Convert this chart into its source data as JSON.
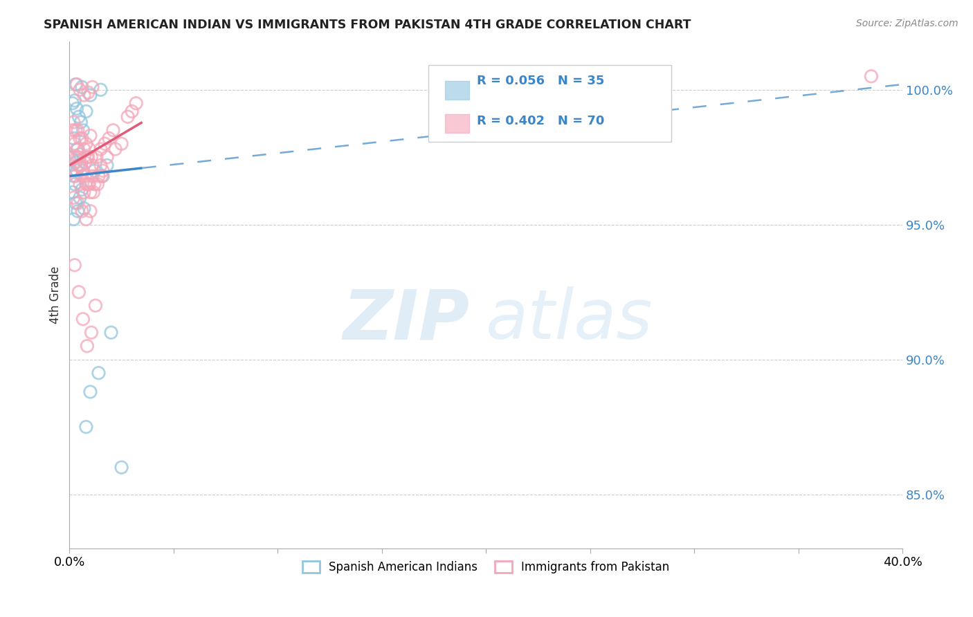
{
  "title": "SPANISH AMERICAN INDIAN VS IMMIGRANTS FROM PAKISTAN 4TH GRADE CORRELATION CHART",
  "source": "Source: ZipAtlas.com",
  "ylabel": "4th Grade",
  "ytick_values": [
    85.0,
    90.0,
    95.0,
    100.0
  ],
  "watermark_zip": "ZIP",
  "watermark_atlas": "atlas",
  "legend_r_blue": "R = 0.056",
  "legend_n_blue": "N = 35",
  "legend_r_pink": "R = 0.402",
  "legend_n_pink": "N = 70",
  "blue_color": "#92c5de",
  "pink_color": "#f4a6b8",
  "blue_line_color": "#3a86c8",
  "pink_line_color": "#e05a7a",
  "blue_scatter_x": [
    0.3,
    0.6,
    1.0,
    1.5,
    0.15,
    0.25,
    0.35,
    0.45,
    0.55,
    0.65,
    0.8,
    0.2,
    0.4,
    0.1,
    0.3,
    0.5,
    0.2,
    0.35,
    0.25,
    0.15,
    0.45,
    0.3,
    0.2,
    0.4,
    0.5,
    0.6,
    0.7,
    1.2,
    1.6,
    1.8,
    2.0,
    1.4,
    1.0,
    0.8,
    2.5
  ],
  "blue_scatter_y": [
    100.2,
    100.1,
    99.8,
    100.0,
    99.5,
    99.6,
    99.3,
    99.0,
    98.8,
    98.5,
    99.2,
    98.2,
    97.8,
    97.5,
    97.3,
    97.6,
    96.8,
    97.0,
    96.5,
    96.2,
    97.2,
    95.8,
    95.2,
    95.5,
    96.0,
    96.3,
    95.6,
    97.0,
    96.8,
    97.2,
    91.0,
    89.5,
    88.8,
    87.5,
    86.0
  ],
  "pink_scatter_x": [
    0.35,
    0.5,
    0.7,
    0.9,
    1.1,
    0.2,
    0.4,
    0.6,
    0.8,
    1.0,
    0.15,
    0.25,
    0.35,
    0.45,
    0.55,
    0.65,
    0.75,
    0.85,
    0.95,
    1.05,
    0.1,
    0.3,
    0.5,
    0.7,
    0.9,
    1.1,
    0.2,
    0.4,
    0.6,
    0.8,
    1.0,
    1.5,
    1.8,
    2.2,
    2.5,
    0.3,
    0.5,
    0.7,
    0.9,
    1.1,
    1.3,
    1.5,
    1.7,
    1.9,
    2.1,
    0.2,
    0.4,
    0.6,
    0.8,
    1.0,
    1.2,
    1.4,
    1.6,
    0.35,
    0.55,
    0.75,
    0.95,
    1.15,
    1.35,
    1.55,
    0.25,
    0.45,
    0.65,
    0.85,
    1.05,
    1.25,
    2.8,
    3.0,
    3.2,
    38.5
  ],
  "pink_scatter_y": [
    100.2,
    100.0,
    99.8,
    99.9,
    100.1,
    98.8,
    98.5,
    98.2,
    98.0,
    98.3,
    98.5,
    98.0,
    97.8,
    97.5,
    97.2,
    97.0,
    97.3,
    97.5,
    97.8,
    97.5,
    97.0,
    96.8,
    96.5,
    96.2,
    96.5,
    96.8,
    96.0,
    95.8,
    95.5,
    95.2,
    95.5,
    97.2,
    97.5,
    97.8,
    98.0,
    98.5,
    98.2,
    97.8,
    97.5,
    97.2,
    97.5,
    97.8,
    98.0,
    98.2,
    98.5,
    97.5,
    97.2,
    96.8,
    96.5,
    96.2,
    96.5,
    96.8,
    97.0,
    97.5,
    97.2,
    96.8,
    96.5,
    96.2,
    96.5,
    96.8,
    93.5,
    92.5,
    91.5,
    90.5,
    91.0,
    92.0,
    99.0,
    99.2,
    99.5,
    100.5
  ],
  "xlim": [
    0.0,
    40.0
  ],
  "ylim": [
    83.0,
    101.8
  ],
  "blue_solid_x0": 0.0,
  "blue_solid_y0": 96.8,
  "blue_solid_x1": 3.5,
  "blue_solid_y1": 97.1,
  "blue_dash_x0": 3.5,
  "blue_dash_y0": 97.1,
  "blue_dash_x1": 40.0,
  "blue_dash_y1": 100.2,
  "pink_x0": 0.0,
  "pink_y0": 97.2,
  "pink_x1": 3.5,
  "pink_y1": 98.8
}
